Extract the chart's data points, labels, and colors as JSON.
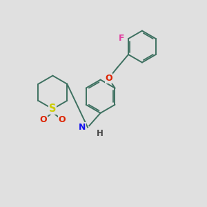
{
  "background_color": "#e0e0e0",
  "bond_color": "#3d7060",
  "bond_width": 1.4,
  "atom_colors": {
    "F": "#e040a0",
    "O": "#dd2200",
    "N": "#1111ee",
    "S": "#cccc00",
    "H": "#444444",
    "C": "#3d7060"
  },
  "font_size": 8.5,
  "fig_size": [
    3.0,
    3.0
  ],
  "dpi": 100
}
